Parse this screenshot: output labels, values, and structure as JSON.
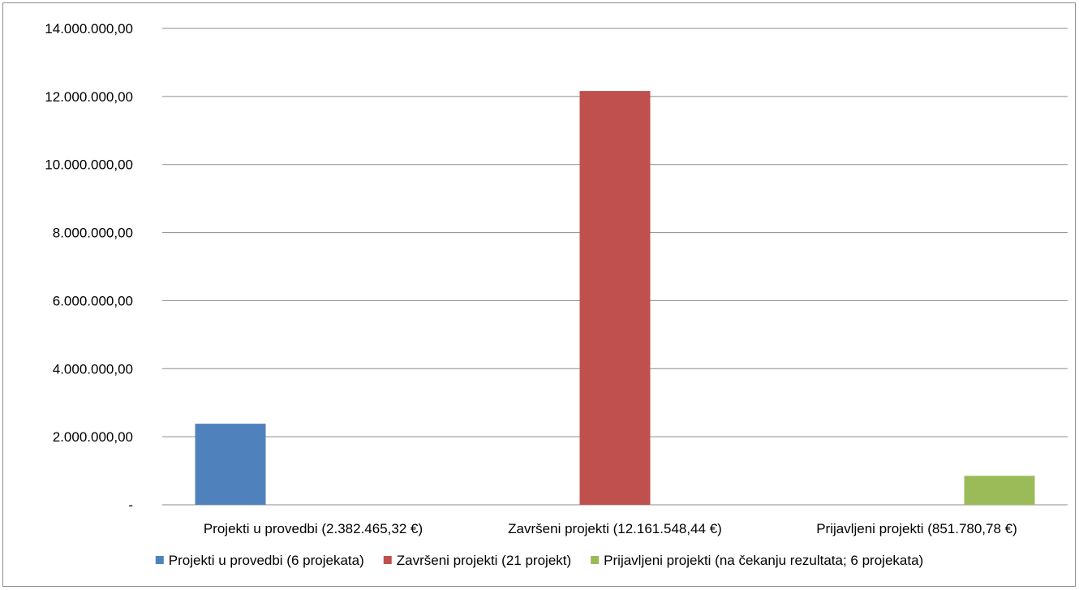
{
  "chart_data": {
    "type": "bar",
    "categories": [
      "Projekti u provedbi (2.382.465,32 €)",
      "Završeni projekti (12.161.548,44 €)",
      "Prijavljeni projekti (851.780,78 €)"
    ],
    "series": [
      {
        "name": "Projekti u provedbi (6 projekata)",
        "color": "#4f81bd",
        "values": [
          2382465.32,
          null,
          null
        ]
      },
      {
        "name": "Završeni projekti (21 projekt)",
        "color": "#c0504d",
        "values": [
          null,
          12161548.44,
          null
        ]
      },
      {
        "name": "Prijavljeni projekti (na čekanju rezultata; 6 projekata)",
        "color": "#9bbb59",
        "values": [
          null,
          null,
          851780.78
        ]
      }
    ],
    "ylim": [
      0,
      14000000
    ],
    "y_ticks": [
      {
        "value": 0,
        "label": "-"
      },
      {
        "value": 2000000,
        "label": "2.000.000,00"
      },
      {
        "value": 4000000,
        "label": "4.000.000,00"
      },
      {
        "value": 6000000,
        "label": "6.000.000,00"
      },
      {
        "value": 8000000,
        "label": "8.000.000,00"
      },
      {
        "value": 10000000,
        "label": "10.000.000,00"
      },
      {
        "value": 12000000,
        "label": "12.000.000,00"
      },
      {
        "value": 14000000,
        "label": "14.000.000,00"
      }
    ],
    "grid": true,
    "legend_position": "bottom"
  }
}
